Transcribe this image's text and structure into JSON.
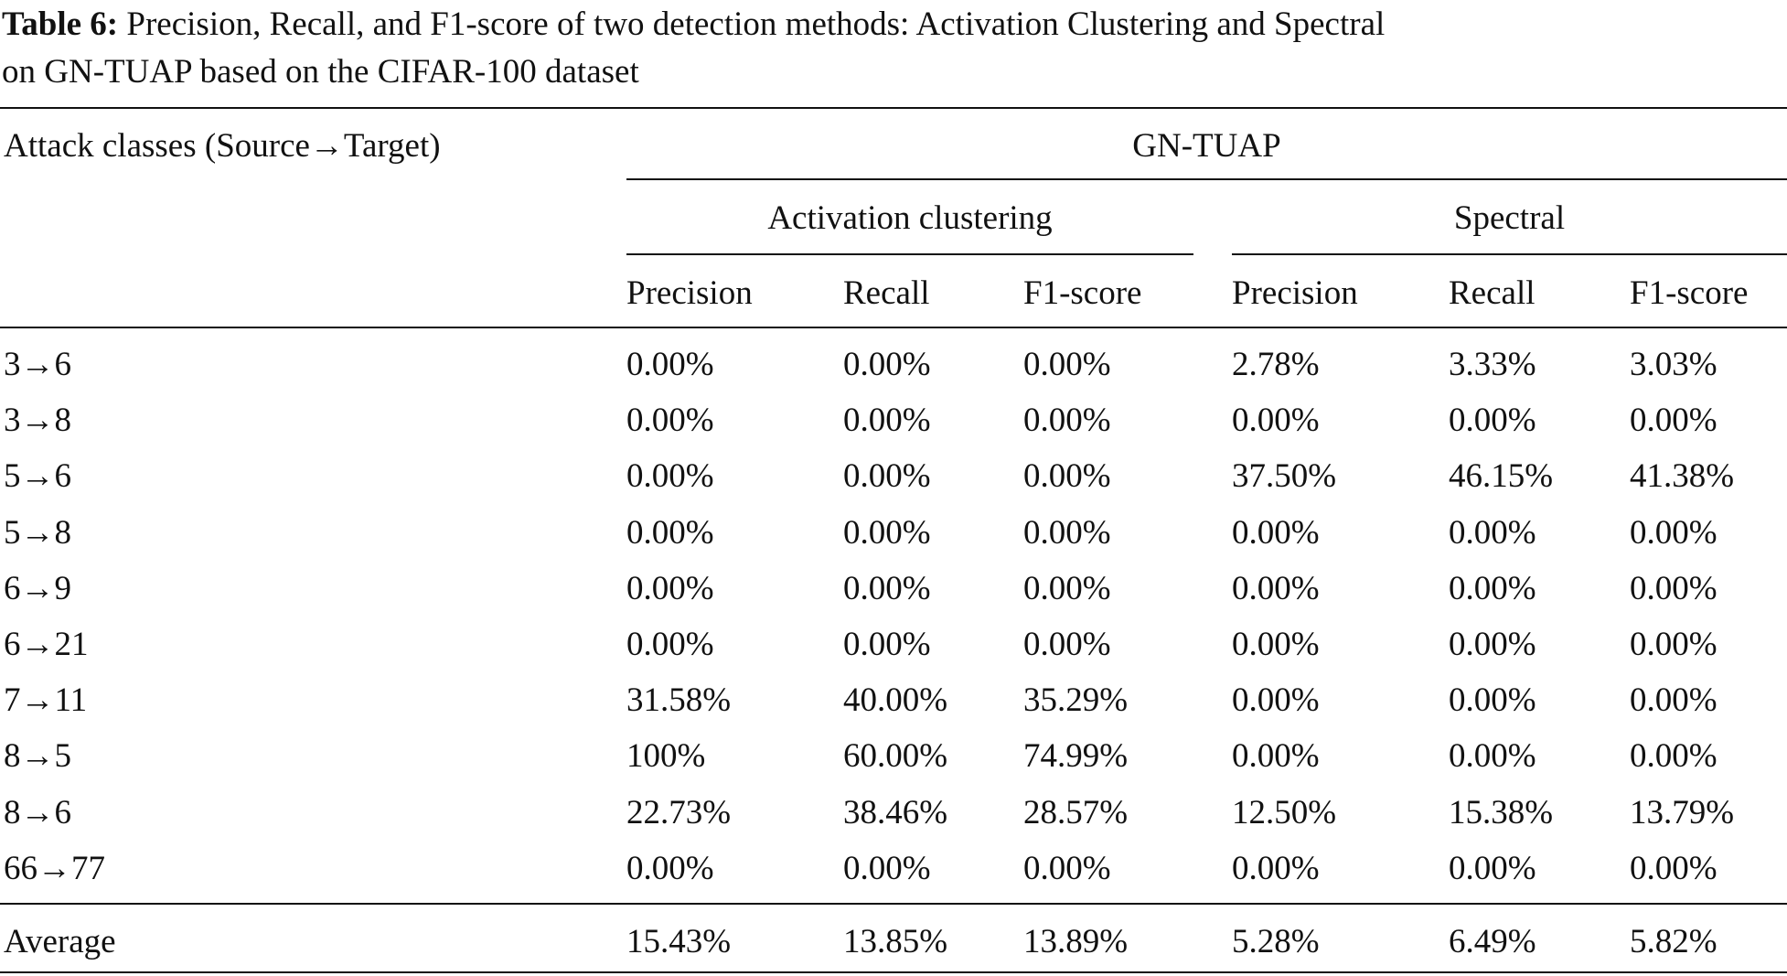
{
  "caption": {
    "label": "Table 6:",
    "line1": " Precision, Recall, and F1-score of two detection methods: Activation Clustering and Spectral",
    "line2": "on GN-TUAP based on the CIFAR-100 dataset"
  },
  "header": {
    "row_label": "Attack classes (Source→Target)",
    "group": "GN-TUAP",
    "methods": [
      "Activation clustering",
      "Spectral"
    ],
    "metrics": [
      "Precision",
      "Recall",
      "F1-score",
      "Precision",
      "Recall",
      "F1-score"
    ]
  },
  "rows": [
    {
      "label": "3→6",
      "values": [
        "0.00%",
        "0.00%",
        "0.00%",
        "2.78%",
        "3.33%",
        "3.03%"
      ]
    },
    {
      "label": "3→8",
      "values": [
        "0.00%",
        "0.00%",
        "0.00%",
        "0.00%",
        "0.00%",
        "0.00%"
      ]
    },
    {
      "label": "5→6",
      "values": [
        "0.00%",
        "0.00%",
        "0.00%",
        "37.50%",
        "46.15%",
        "41.38%"
      ]
    },
    {
      "label": "5→8",
      "values": [
        "0.00%",
        "0.00%",
        "0.00%",
        "0.00%",
        "0.00%",
        "0.00%"
      ]
    },
    {
      "label": "6→9",
      "values": [
        "0.00%",
        "0.00%",
        "0.00%",
        "0.00%",
        "0.00%",
        "0.00%"
      ]
    },
    {
      "label": "6→21",
      "values": [
        "0.00%",
        "0.00%",
        "0.00%",
        "0.00%",
        "0.00%",
        "0.00%"
      ]
    },
    {
      "label": "7→11",
      "values": [
        "31.58%",
        "40.00%",
        "35.29%",
        "0.00%",
        "0.00%",
        "0.00%"
      ]
    },
    {
      "label": "8→5",
      "values": [
        "100%",
        "60.00%",
        "74.99%",
        "0.00%",
        "0.00%",
        "0.00%"
      ]
    },
    {
      "label": "8→6",
      "values": [
        "22.73%",
        "38.46%",
        "28.57%",
        "12.50%",
        "15.38%",
        "13.79%"
      ]
    },
    {
      "label": "66→77",
      "values": [
        "0.00%",
        "0.00%",
        "0.00%",
        "0.00%",
        "0.00%",
        "0.00%"
      ]
    }
  ],
  "average": {
    "label": "Average",
    "values": [
      "15.43%",
      "13.85%",
      "13.89%",
      "5.28%",
      "6.49%",
      "5.82%"
    ]
  }
}
